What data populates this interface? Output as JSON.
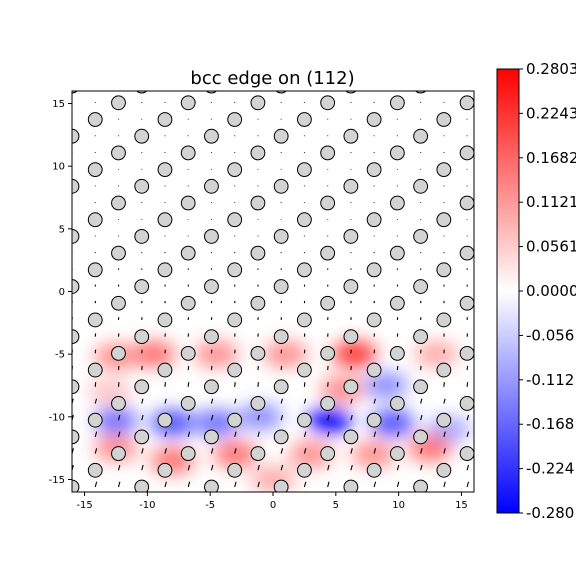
{
  "chart_data": {
    "type": "heatmap",
    "title": "bcc edge on (112)",
    "xlabel": "",
    "ylabel": "",
    "xlim": [
      -16,
      16
    ],
    "ylim": [
      -16,
      16
    ],
    "x_ticks": [
      -15,
      -10,
      -5,
      0,
      5,
      10,
      15
    ],
    "y_ticks": [
      -15,
      -10,
      -5,
      0,
      5,
      10,
      15
    ],
    "grid": false,
    "colormap": "bwr",
    "colorbar": {
      "min": -0.2803,
      "max": 0.2803,
      "tick_labels": [
        "0.2803",
        "0.2243",
        "0.1682",
        "0.1121",
        "0.0561",
        "0.0000",
        "-0.056",
        "-0.112",
        "-0.168",
        "-0.224",
        "-0.280"
      ],
      "tick_values": [
        0.2803,
        0.2243,
        0.1682,
        0.1121,
        0.0561,
        0.0,
        -0.0561,
        -0.1121,
        -0.1682,
        -0.2243,
        -0.2803
      ]
    },
    "atom_lattice": {
      "row_spacing": 1.333,
      "x_period": 5.55,
      "row_shift": 1.85,
      "y_start": -15.6,
      "atom_radius": 0.55,
      "atom_color": "#d3d3d3"
    },
    "color_blobs": [
      {
        "x": -12.5,
        "y": -5.2,
        "value": 0.04
      },
      {
        "x": -9.5,
        "y": -5.0,
        "value": 0.05
      },
      {
        "x": -4.5,
        "y": -5.0,
        "value": 0.04
      },
      {
        "x": 1.0,
        "y": -5.0,
        "value": 0.04
      },
      {
        "x": 6.5,
        "y": -5.0,
        "value": 0.07
      },
      {
        "x": 13.0,
        "y": -5.0,
        "value": 0.03
      },
      {
        "x": -13.0,
        "y": -8.0,
        "value": 0.02
      },
      {
        "x": 5.5,
        "y": -7.8,
        "value": 0.04
      },
      {
        "x": 9.0,
        "y": -7.5,
        "value": -0.04
      },
      {
        "x": -12.5,
        "y": -10.3,
        "value": -0.05
      },
      {
        "x": -8.0,
        "y": -10.5,
        "value": -0.06
      },
      {
        "x": -4.5,
        "y": -10.5,
        "value": -0.05
      },
      {
        "x": -1.0,
        "y": -10.0,
        "value": -0.04
      },
      {
        "x": 4.5,
        "y": -10.3,
        "value": -0.12
      },
      {
        "x": 9.5,
        "y": -10.5,
        "value": -0.06
      },
      {
        "x": 14.0,
        "y": -11.0,
        "value": -0.03
      },
      {
        "x": -12.5,
        "y": -12.5,
        "value": 0.04
      },
      {
        "x": -8.0,
        "y": -13.5,
        "value": 0.05
      },
      {
        "x": -3.0,
        "y": -13.0,
        "value": 0.05
      },
      {
        "x": 3.0,
        "y": -13.0,
        "value": 0.04
      },
      {
        "x": 8.0,
        "y": -13.0,
        "value": 0.04
      },
      {
        "x": 12.5,
        "y": -12.5,
        "value": 0.05
      },
      {
        "x": 0.0,
        "y": -15.0,
        "value": 0.03
      }
    ],
    "arrow_scale": 0.6
  }
}
